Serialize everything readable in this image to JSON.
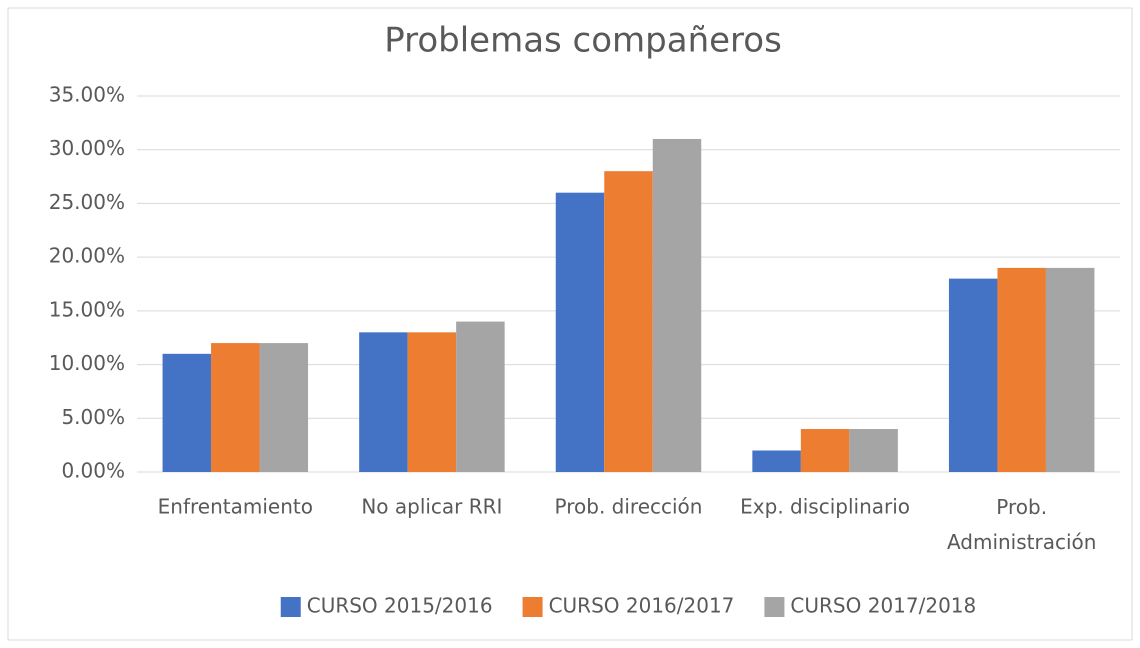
{
  "chart_data": {
    "type": "bar",
    "title": "Problemas compañeros",
    "categories": [
      "Enfrentamiento",
      "No aplicar RRI",
      "Prob. dirección",
      "Exp. disciplinario",
      "Prob. Administración"
    ],
    "series": [
      {
        "name": "CURSO 2015/2016",
        "color": "#4472c4",
        "values": [
          11,
          13,
          26,
          2,
          18
        ]
      },
      {
        "name": "CURSO 2016/2017",
        "color": "#ed7d31",
        "values": [
          12,
          13,
          28,
          4,
          19
        ]
      },
      {
        "name": "CURSO 2017/2018",
        "color": "#a5a5a5",
        "values": [
          12,
          14,
          31,
          4,
          19
        ]
      }
    ],
    "ylim": [
      0,
      35
    ],
    "yticks": [
      {
        "value": 0,
        "label": "0.00%"
      },
      {
        "value": 5,
        "label": "5.00%"
      },
      {
        "value": 10,
        "label": "10.00%"
      },
      {
        "value": 15,
        "label": "15.00%"
      },
      {
        "value": 20,
        "label": "20.00%"
      },
      {
        "value": 25,
        "label": "25.00%"
      },
      {
        "value": 30,
        "label": "30.00%"
      },
      {
        "value": 35,
        "label": "35.00%"
      }
    ],
    "grid": true,
    "legend": "bottom"
  }
}
